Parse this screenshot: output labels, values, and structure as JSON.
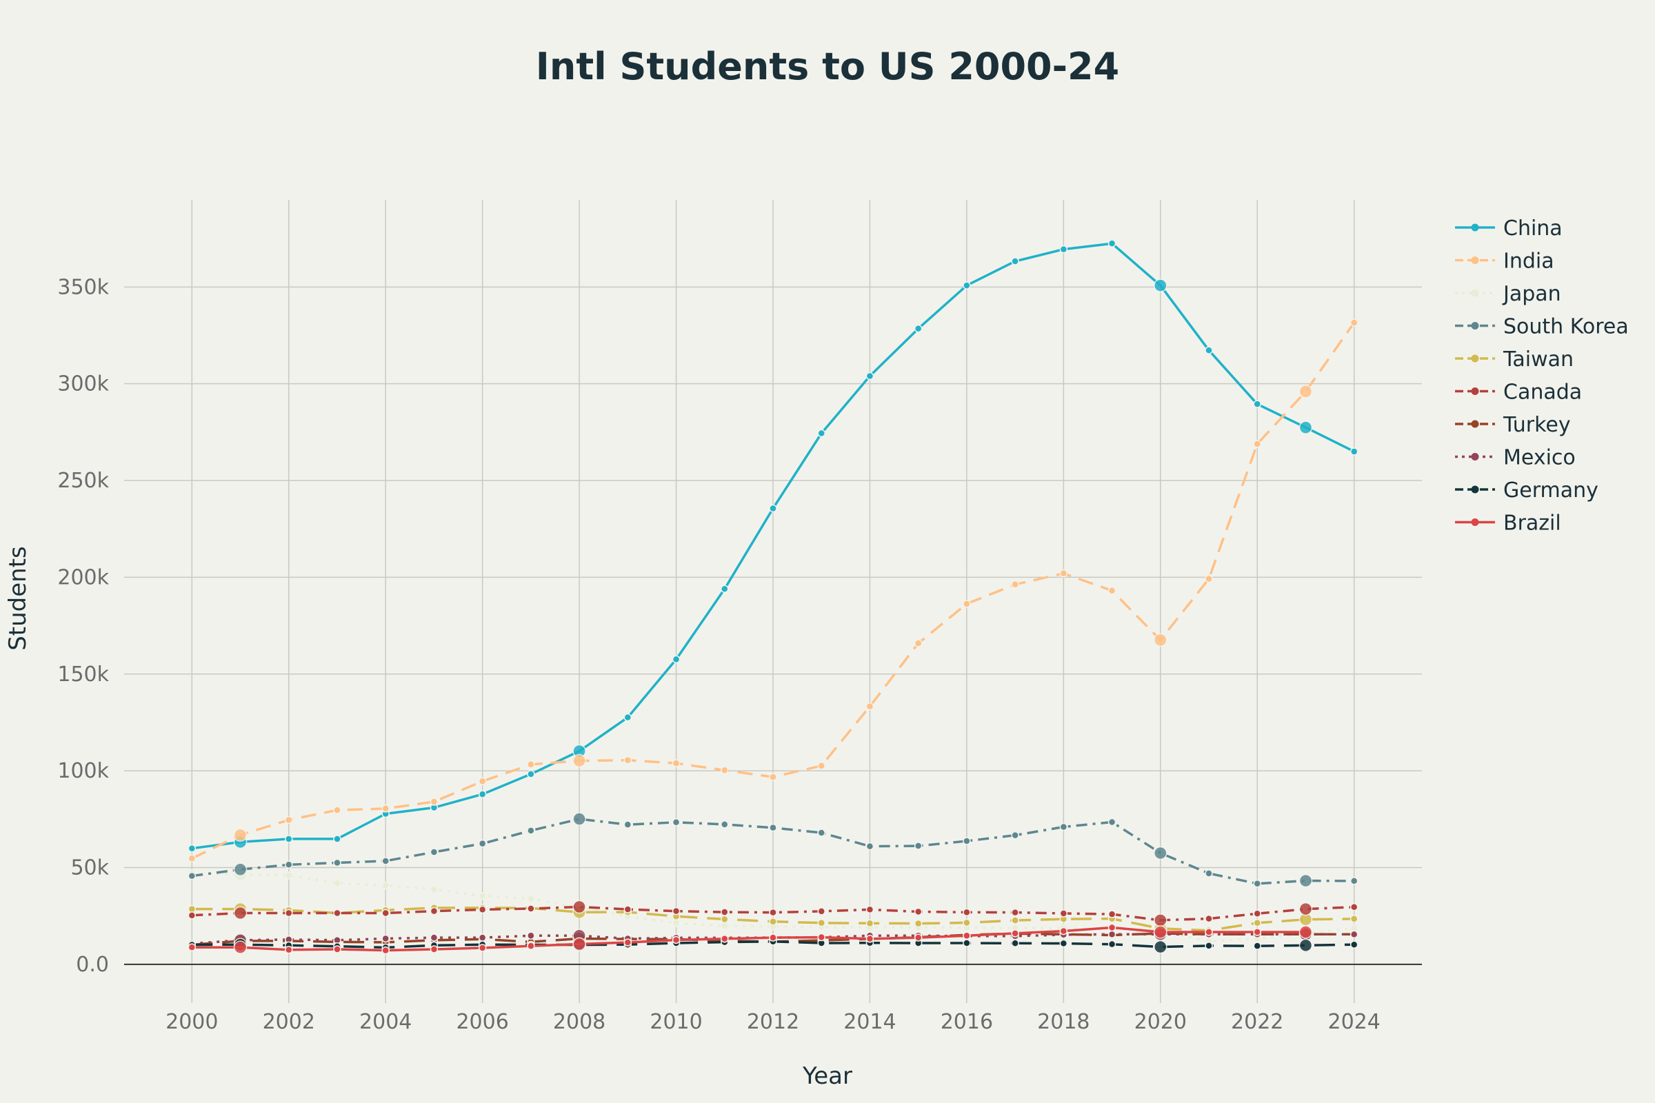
{
  "chart_data": {
    "type": "line",
    "title": "Intl Students to US 2000-24",
    "xlabel": "Year",
    "ylabel": "Students",
    "xlim": [
      1998.6,
      2025.4
    ],
    "ylim": [
      -20000,
      395000
    ],
    "x_ticks": [
      2000,
      2002,
      2004,
      2006,
      2008,
      2010,
      2012,
      2014,
      2016,
      2018,
      2020,
      2022,
      2024
    ],
    "y_ticks": [
      0,
      50000,
      100000,
      150000,
      200000,
      250000,
      300000,
      350000
    ],
    "y_tick_labels": [
      "0.0",
      "50k",
      "100k",
      "150k",
      "200k",
      "250k",
      "300k",
      "350k"
    ],
    "grid": true,
    "legend_position": "right",
    "series": [
      {
        "name": "China",
        "color": "#1fb2c8",
        "dash": "solid",
        "x": [
          2000,
          2001,
          2002,
          2003,
          2004,
          2005,
          2006,
          2007,
          2008,
          2009,
          2010,
          2011,
          2012,
          2013,
          2014,
          2015,
          2016,
          2017,
          2018,
          2019,
          2020,
          2021,
          2022,
          2023,
          2024
        ],
        "values": [
          59900,
          63200,
          64800,
          64800,
          77800,
          81000,
          87900,
          98300,
          110200,
          127600,
          157600,
          194000,
          235600,
          274400,
          304000,
          328500,
          350800,
          363300,
          369500,
          372500,
          350800,
          317300,
          289500,
          277400,
          265000
        ],
        "big_markers": [
          2001,
          2008,
          2020,
          2023
        ]
      },
      {
        "name": "India",
        "color": "#ffc185",
        "dash": "dash",
        "x": [
          2000,
          2001,
          2002,
          2003,
          2004,
          2005,
          2006,
          2007,
          2008,
          2009,
          2010,
          2011,
          2012,
          2013,
          2014,
          2015,
          2016,
          2017,
          2018,
          2019,
          2020,
          2021,
          2022,
          2023,
          2024
        ],
        "values": [
          54700,
          66800,
          74600,
          79700,
          80500,
          84000,
          94600,
          103300,
          105200,
          105500,
          103900,
          100300,
          96800,
          102600,
          133300,
          165900,
          186300,
          196300,
          202000,
          193100,
          167600,
          199200,
          268900,
          296000,
          331600
        ],
        "big_markers": [
          2001,
          2008,
          2020,
          2023
        ]
      },
      {
        "name": "Japan",
        "color": "#e7eed6",
        "dash": "dot",
        "x": [
          2000,
          2001,
          2002,
          2003,
          2004,
          2005,
          2006,
          2007,
          2008,
          2009,
          2010,
          2011,
          2012,
          2013,
          2014,
          2015,
          2016,
          2017,
          2018,
          2019,
          2020,
          2021,
          2022,
          2023,
          2024
        ],
        "values": [
          46900,
          46500,
          45900,
          42000,
          40800,
          38700,
          35300,
          33900,
          29300,
          24800,
          21300,
          19900,
          19600,
          19300,
          19100,
          19100,
          19000,
          18800,
          18800,
          18100,
          17600,
          11800,
          13400,
          16000,
          18700
        ],
        "big_markers": [
          2001,
          2008,
          2020,
          2023
        ]
      },
      {
        "name": "South Korea",
        "color": "#5d878f",
        "dash": "dashdot",
        "x": [
          2000,
          2001,
          2002,
          2003,
          2004,
          2005,
          2006,
          2007,
          2008,
          2009,
          2010,
          2011,
          2012,
          2013,
          2014,
          2015,
          2016,
          2017,
          2018,
          2019,
          2020,
          2021,
          2022,
          2023,
          2024
        ],
        "values": [
          45700,
          49000,
          51500,
          52500,
          53400,
          58000,
          62400,
          69100,
          75100,
          72200,
          73400,
          72300,
          70600,
          68000,
          61000,
          61200,
          63700,
          66700,
          71000,
          73500,
          57500,
          47000,
          41700,
          43200,
          43100
        ],
        "big_markers": [
          2001,
          2008,
          2020,
          2023
        ]
      },
      {
        "name": "Taiwan",
        "color": "#d2ba4c",
        "dash": "longdash",
        "x": [
          2000,
          2001,
          2002,
          2003,
          2004,
          2005,
          2006,
          2007,
          2008,
          2009,
          2010,
          2011,
          2012,
          2013,
          2014,
          2015,
          2016,
          2017,
          2018,
          2019,
          2020,
          2021,
          2022,
          2023,
          2024
        ],
        "values": [
          28600,
          28600,
          28000,
          26500,
          28000,
          29200,
          29200,
          29100,
          26900,
          27000,
          24800,
          23300,
          22100,
          21400,
          21200,
          21100,
          21500,
          22700,
          23400,
          23600,
          18500,
          17500,
          21400,
          23200,
          23500
        ],
        "big_markers": [
          2001,
          2008,
          2020,
          2023
        ]
      },
      {
        "name": "Canada",
        "color": "#b4413c",
        "dash": "dashdot",
        "x": [
          2000,
          2001,
          2002,
          2003,
          2004,
          2005,
          2006,
          2007,
          2008,
          2009,
          2010,
          2011,
          2012,
          2013,
          2014,
          2015,
          2016,
          2017,
          2018,
          2019,
          2020,
          2021,
          2022,
          2023,
          2024
        ],
        "values": [
          25300,
          26500,
          26500,
          26500,
          26500,
          27500,
          28300,
          28800,
          29700,
          28400,
          27500,
          27000,
          26800,
          27400,
          28300,
          27200,
          26900,
          26800,
          26300,
          25900,
          22800,
          23600,
          26200,
          28600,
          29600
        ],
        "big_markers": [
          2001,
          2008,
          2020,
          2023
        ]
      },
      {
        "name": "Turkey",
        "color": "#964325",
        "dash": "longdash",
        "x": [
          2000,
          2001,
          2002,
          2003,
          2004,
          2005,
          2006,
          2007,
          2008,
          2009,
          2010,
          2011,
          2012,
          2013,
          2014,
          2015,
          2016,
          2017,
          2018,
          2019,
          2020,
          2021,
          2022,
          2023,
          2024
        ],
        "values": [
          10100,
          12100,
          12100,
          11600,
          11400,
          12500,
          13000,
          11600,
          13300,
          13100,
          13000,
          12200,
          11700,
          12400,
          13100,
          14000,
          15200,
          15900,
          15500,
          15100,
          16000,
          15500,
          15500,
          15500,
          15500
        ],
        "big_markers": [
          2001,
          2008,
          2020,
          2023
        ]
      },
      {
        "name": "Mexico",
        "color": "#944454",
        "dash": "dot",
        "x": [
          2000,
          2001,
          2002,
          2003,
          2004,
          2005,
          2006,
          2007,
          2008,
          2009,
          2010,
          2011,
          2012,
          2013,
          2014,
          2015,
          2016,
          2017,
          2018,
          2019,
          2020,
          2021,
          2022,
          2023,
          2024
        ],
        "values": [
          10700,
          12500,
          12800,
          12500,
          13300,
          13800,
          13800,
          14800,
          14800,
          13300,
          13700,
          13700,
          13800,
          14000,
          14800,
          14800,
          14600,
          14600,
          15300,
          15500,
          15500,
          15500,
          15500,
          15500,
          15500
        ],
        "big_markers": [
          2001,
          2008,
          2020,
          2023
        ]
      },
      {
        "name": "Germany",
        "color": "#13343b",
        "dash": "longdash",
        "x": [
          2000,
          2001,
          2002,
          2003,
          2004,
          2005,
          2006,
          2007,
          2008,
          2009,
          2010,
          2011,
          2012,
          2013,
          2014,
          2015,
          2016,
          2017,
          2018,
          2019,
          2020,
          2021,
          2022,
          2023,
          2024
        ],
        "values": [
          10100,
          10200,
          9800,
          9300,
          8700,
          9800,
          10200,
          10100,
          10100,
          10200,
          11000,
          11500,
          11800,
          11000,
          11100,
          11000,
          11000,
          10900,
          10800,
          10400,
          9000,
          9600,
          9500,
          9800,
          10200
        ],
        "big_markers": [
          2001,
          2008,
          2020,
          2023
        ]
      },
      {
        "name": "Brazil",
        "color": "#db4545",
        "dash": "solid",
        "x": [
          2000,
          2001,
          2002,
          2003,
          2004,
          2005,
          2006,
          2007,
          2008,
          2009,
          2010,
          2011,
          2012,
          2013,
          2014,
          2015,
          2016,
          2017,
          2018,
          2019,
          2020,
          2021,
          2022,
          2023
        ],
        "values": [
          8800,
          8800,
          7500,
          7800,
          7200,
          7800,
          8500,
          9500,
          10500,
          11300,
          12600,
          13200,
          13800,
          14000,
          13200,
          13800,
          14800,
          16000,
          17200,
          19000,
          16700,
          16700,
          16700,
          16700
        ],
        "big_markers": [
          2001,
          2008,
          2020,
          2023
        ]
      }
    ]
  }
}
